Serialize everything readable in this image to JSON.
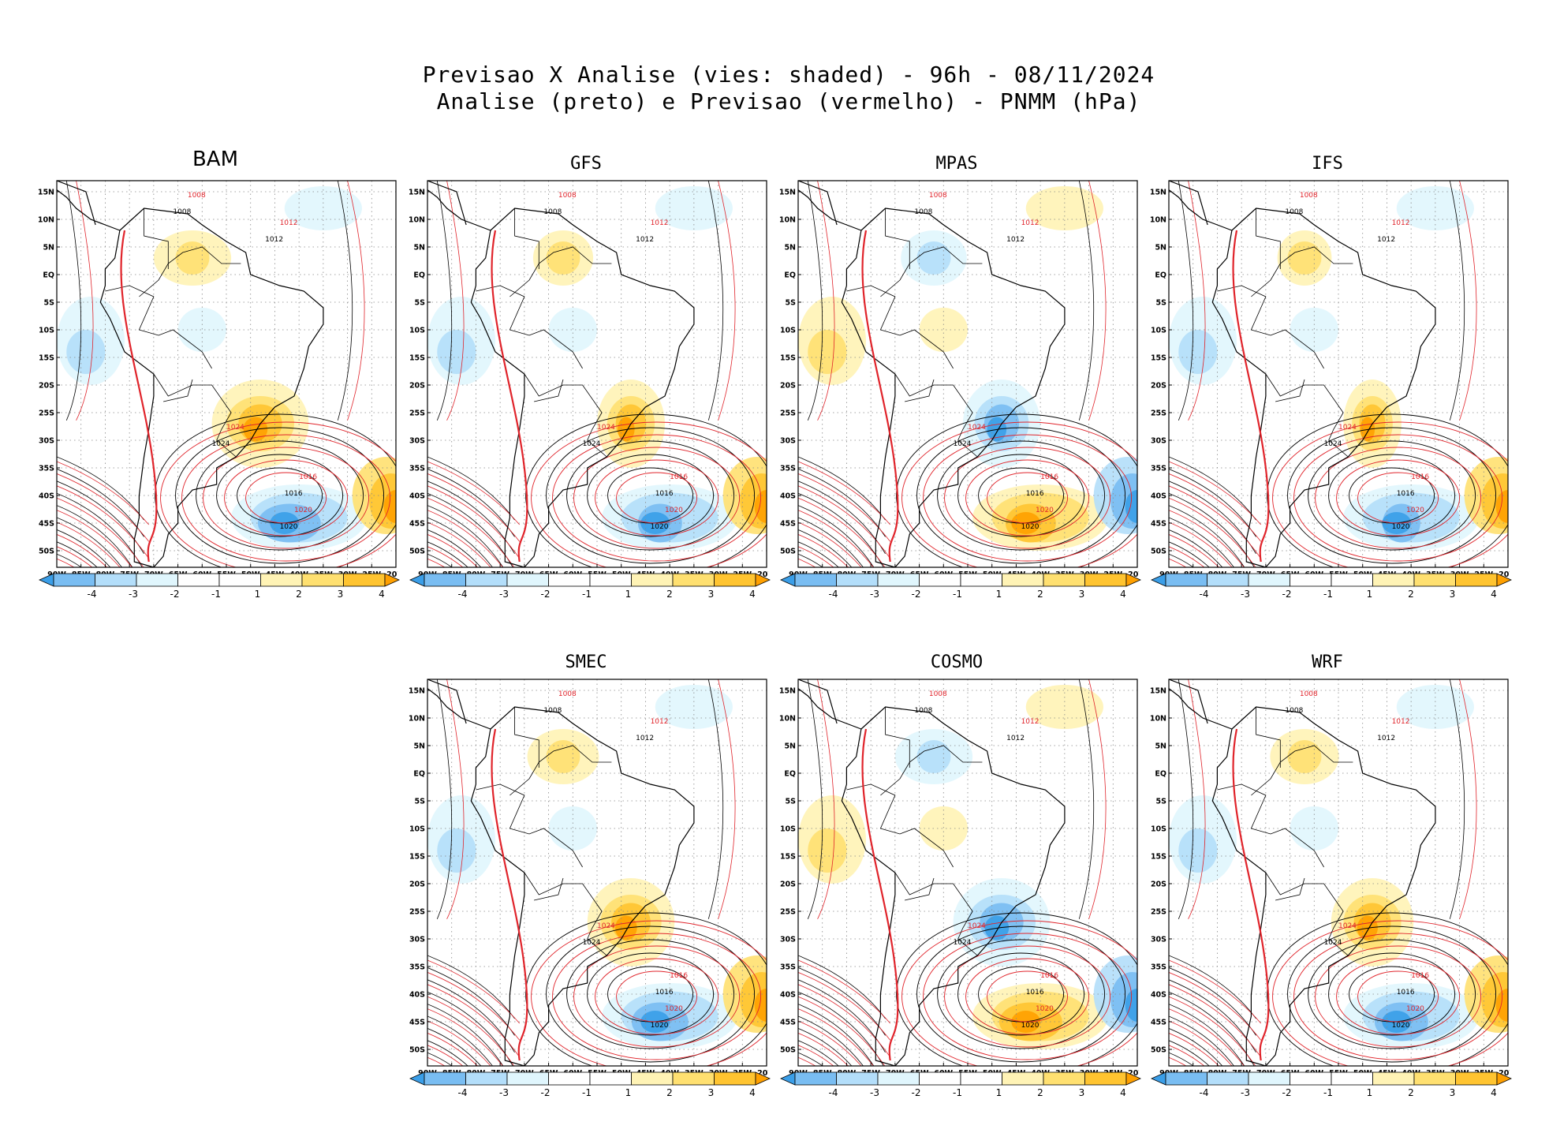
{
  "title_line1": "Previsao X Analise (vies: shaded) - 96h - 08/11/2024",
  "title_line2": "Analise (preto) e Previsao (vermelho) - PNMM (hPa)",
  "colors": {
    "analysis_contour": "#000000",
    "forecast_contour": "#e0242b",
    "bias_neg4": "#3a9ee8",
    "bias_neg3": "#79bdf2",
    "bias_neg2": "#b3defa",
    "bias_neg1": "#e0f6fd",
    "bias_pos1": "#fff3b5",
    "bias_pos2": "#ffe070",
    "bias_pos3": "#ffc430",
    "bias_pos4": "#ffa000"
  },
  "colorbar": {
    "ticks": [
      "-4",
      "-3",
      "-2",
      "-1",
      "1",
      "2",
      "3",
      "4"
    ]
  },
  "axes": {
    "lat_labels": [
      "15N",
      "10N",
      "5N",
      "EQ",
      "5S",
      "10S",
      "15S",
      "20S",
      "25S",
      "30S",
      "35S",
      "40S",
      "45S",
      "50S"
    ],
    "lon_labels": [
      "90W",
      "85W",
      "80W",
      "75W",
      "70W",
      "65W",
      "60W",
      "55W",
      "50W",
      "45W",
      "40W",
      "35W",
      "30W",
      "25W",
      "20W"
    ]
  },
  "panels": [
    {
      "name": "BAM",
      "bias_sign": 1,
      "bias_scale": 1.0,
      "isobars": [
        "1008",
        "1012",
        "1016",
        "1020",
        "1024"
      ]
    },
    {
      "name": "GFS",
      "bias_sign": 1,
      "bias_scale": 0.7,
      "isobars": [
        "1008",
        "1012",
        "1016",
        "1020",
        "1024"
      ]
    },
    {
      "name": "MPAS",
      "bias_sign": -1,
      "bias_scale": 0.8,
      "isobars": [
        "1008",
        "1012",
        "1016",
        "1020",
        "1024"
      ]
    },
    {
      "name": "IFS",
      "bias_sign": 1,
      "bias_scale": 0.6,
      "isobars": [
        "1008",
        "1012",
        "1016",
        "1020",
        "1024"
      ]
    },
    {
      "name": "SMEC",
      "bias_sign": 1,
      "bias_scale": 0.9,
      "isobars": [
        "1008",
        "1012",
        "1016",
        "1020",
        "1024"
      ]
    },
    {
      "name": "COSMO",
      "bias_sign": -1,
      "bias_scale": 1.0,
      "isobars": [
        "1008",
        "1012",
        "1016",
        "1020",
        "1024"
      ]
    },
    {
      "name": "WRF",
      "bias_sign": 1,
      "bias_scale": 0.85,
      "isobars": [
        "1008",
        "1012",
        "1016",
        "1020",
        "1024"
      ]
    }
  ],
  "chart_data": {
    "type": "heatmap",
    "title": "Previsao X Analise (vies: shaded) - 96h - 08/11/2024",
    "subtitle": "Analise (preto) e Previsao (vermelho) - PNMM (hPa)",
    "variable": "PNMM (hPa)",
    "shading": "vies (bias, hPa)",
    "color_levels": [
      -4,
      -3,
      -2,
      -1,
      1,
      2,
      3,
      4
    ],
    "xlim": [
      -90,
      -20
    ],
    "ylim": [
      -53,
      17
    ],
    "contour_levels_hPa": [
      996,
      1000,
      1004,
      1008,
      1012,
      1016,
      1020,
      1024
    ],
    "models": [
      "BAM",
      "GFS",
      "MPAS",
      "IFS",
      "SMEC",
      "COSMO",
      "WRF"
    ]
  }
}
